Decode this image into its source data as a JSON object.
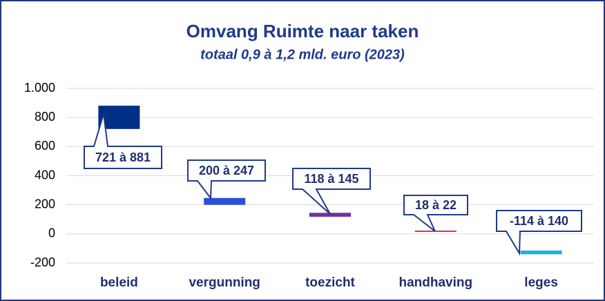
{
  "chart_data": {
    "type": "floating-bar",
    "title": "Omvang Ruimte naar taken",
    "subtitle": "totaal 0,9 à 1,2 mld. euro (2023)",
    "categories": [
      "beleid",
      "vergunning",
      "toezicht",
      "handhaving",
      "leges"
    ],
    "starts": [
      721,
      200,
      118,
      18,
      -114
    ],
    "ends": [
      881,
      247,
      145,
      22,
      -140
    ],
    "value_labels": [
      "721 à 881",
      "200 à 247",
      "118 à 145",
      "18 à 22",
      "-114 à 140"
    ],
    "colors": [
      "#002f87",
      "#2b50d8",
      "#7030a0",
      "#c00000",
      "#1ab0e6"
    ],
    "ylim": [
      -200,
      1000
    ],
    "yticks": [
      -200,
      0,
      200,
      400,
      600,
      800,
      {
        "value": 1000,
        "label": "1.000"
      }
    ],
    "grid": true
  }
}
